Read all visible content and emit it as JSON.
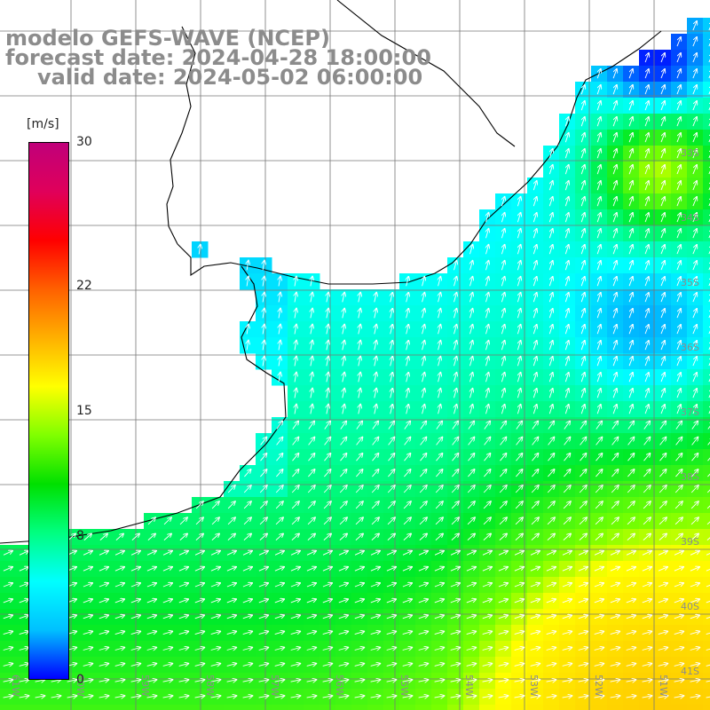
{
  "title": {
    "line1": "modelo GEFS-WAVE (NCEP)",
    "line2": "forecast date: 2024-04-28 18:00:00",
    "line3": "valid date: 2024-05-02 06:00:00"
  },
  "colorbar": {
    "unit": "[m/s]",
    "min": 0,
    "max": 30,
    "tick_labels": [
      "30",
      "22",
      "15",
      "8",
      "0"
    ],
    "tick_values": [
      30,
      22,
      15,
      8,
      0
    ],
    "gradient": [
      "#0000ff",
      "#00c0ff",
      "#00ffff",
      "#00ff80",
      "#00e000",
      "#80ff00",
      "#ffff00",
      "#ffb000",
      "#ff6000",
      "#ff0000",
      "#e0005a",
      "#c0007a"
    ]
  },
  "map": {
    "variable": "wind speed and direction",
    "units": "m/s",
    "region": "Rio de la Plata / SW Atlantic",
    "lat_labels": [
      "33S",
      "34S",
      "35S",
      "36S",
      "37S",
      "38S",
      "39S",
      "40S",
      "41S"
    ],
    "lon_labels": [
      "61W",
      "60W",
      "59W",
      "58W",
      "57W",
      "56W",
      "55W",
      "54W",
      "53W",
      "52W",
      "51W"
    ],
    "grid_lines": true
  }
}
